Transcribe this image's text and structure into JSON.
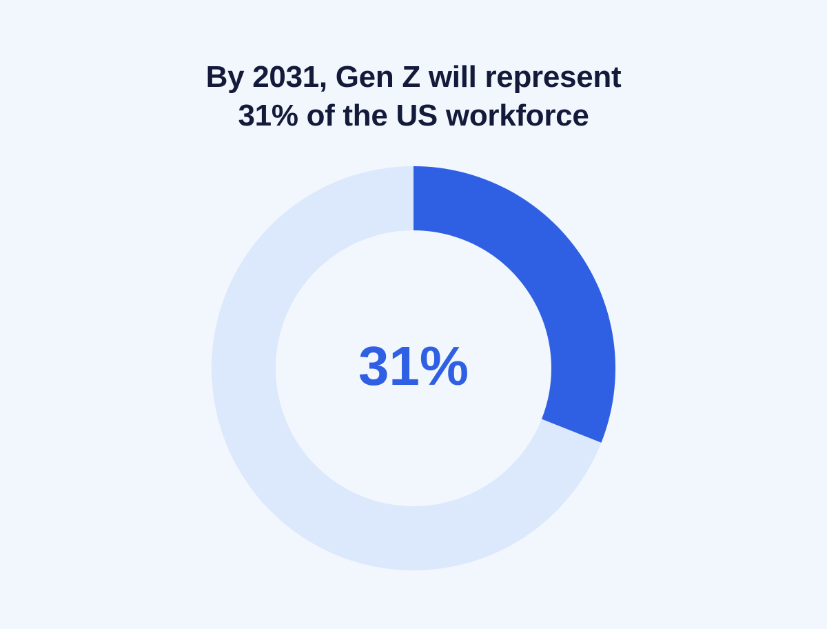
{
  "title": {
    "line1": "By 2031, Gen Z will represent",
    "line2": "31% of the US workforce"
  },
  "chart_data": {
    "type": "pie",
    "variant": "donut",
    "title": "By 2031, Gen Z will represent 31% of the US workforce",
    "slices": [
      {
        "value": 31,
        "color": "#2f5fe3"
      },
      {
        "value": 69,
        "color": "#dce8fb"
      }
    ],
    "center_label": "31%",
    "center_label_color": "#2f5fe3"
  },
  "colors": {
    "background": "#f2f7fd",
    "title": "#131a3a"
  }
}
